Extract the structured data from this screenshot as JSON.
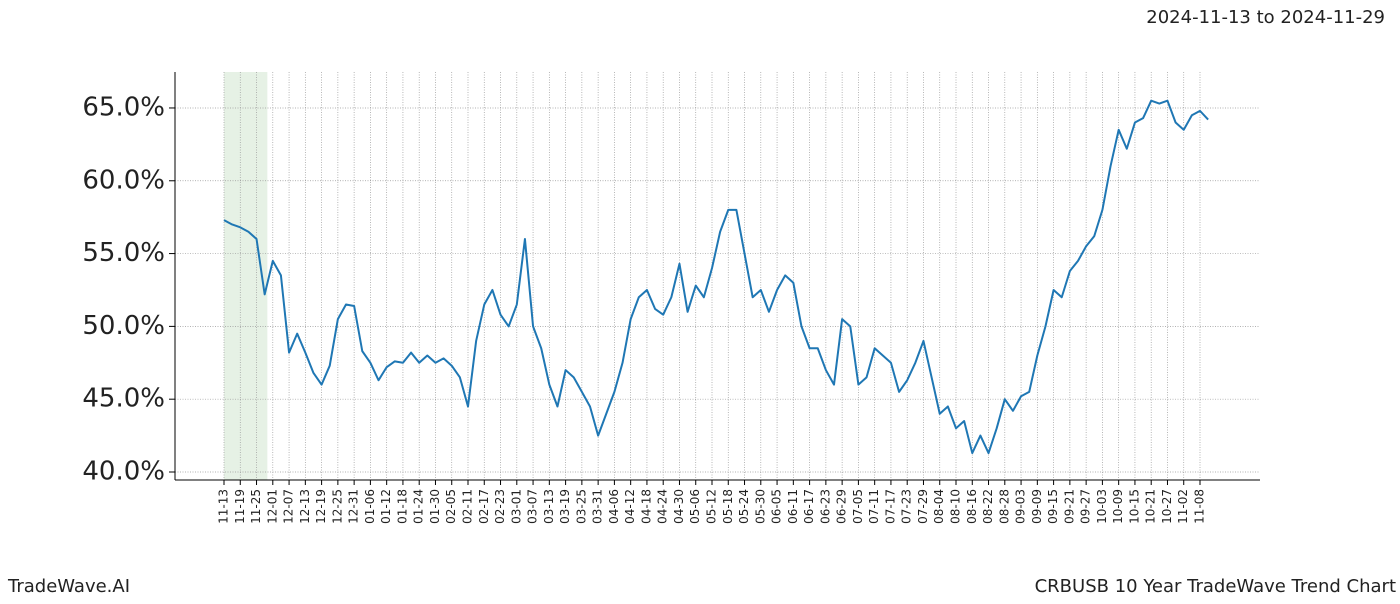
{
  "header": "2024-11-13 to 2024-11-29",
  "footer_left": "TradeWave.AI",
  "footer_right": "CRBUSB 10 Year TradeWave Trend Chart",
  "chart_data": {
    "type": "line",
    "color": "#1f77b4",
    "grid": true,
    "shade": {
      "from": "11-13",
      "to": "11-29",
      "color": "#d5e8d4"
    },
    "ylim": [
      39.45,
      67.47
    ],
    "yticks": [
      {
        "value": 40,
        "label": "40.0%"
      },
      {
        "value": 45,
        "label": "45.0%"
      },
      {
        "value": 50,
        "label": "50.0%"
      },
      {
        "value": 55,
        "label": "55.0%"
      },
      {
        "value": 60,
        "label": "60.0%"
      },
      {
        "value": 65,
        "label": "65.0%"
      }
    ],
    "xticks": [
      "11-13",
      "11-19",
      "11-25",
      "12-01",
      "12-07",
      "12-13",
      "12-19",
      "12-25",
      "12-31",
      "01-06",
      "01-12",
      "01-18",
      "01-24",
      "01-30",
      "02-05",
      "02-11",
      "02-17",
      "02-23",
      "03-01",
      "03-07",
      "03-13",
      "03-19",
      "03-25",
      "03-31",
      "04-06",
      "04-12",
      "04-18",
      "04-24",
      "04-30",
      "05-06",
      "05-12",
      "05-18",
      "05-24",
      "05-30",
      "06-05",
      "06-11",
      "06-17",
      "06-23",
      "06-29",
      "07-05",
      "07-11",
      "07-17",
      "07-23",
      "07-29",
      "08-04",
      "08-10",
      "08-16",
      "08-22",
      "08-28",
      "09-03",
      "09-09",
      "09-15",
      "09-21",
      "09-27",
      "10-03",
      "10-09",
      "10-15",
      "10-21",
      "10-27",
      "11-02",
      "11-08"
    ],
    "x": [
      "11-13",
      "11-16",
      "11-19",
      "11-22",
      "11-25",
      "11-28",
      "12-01",
      "12-04",
      "12-07",
      "12-10",
      "12-13",
      "12-16",
      "12-19",
      "12-22",
      "12-25",
      "12-28",
      "12-31",
      "01-03",
      "01-06",
      "01-09",
      "01-12",
      "01-15",
      "01-18",
      "01-21",
      "01-24",
      "01-27",
      "01-30",
      "02-02",
      "02-05",
      "02-08",
      "02-11",
      "02-14",
      "02-17",
      "02-20",
      "02-23",
      "02-26",
      "03-01",
      "03-04",
      "03-07",
      "03-10",
      "03-13",
      "03-16",
      "03-19",
      "03-22",
      "03-25",
      "03-28",
      "03-31",
      "04-03",
      "04-06",
      "04-09",
      "04-12",
      "04-15",
      "04-18",
      "04-21",
      "04-24",
      "04-27",
      "04-30",
      "05-03",
      "05-06",
      "05-09",
      "05-12",
      "05-15",
      "05-18",
      "05-21",
      "05-24",
      "05-27",
      "05-30",
      "06-02",
      "06-05",
      "06-08",
      "06-11",
      "06-14",
      "06-17",
      "06-20",
      "06-23",
      "06-26",
      "06-29",
      "07-02",
      "07-05",
      "07-08",
      "07-11",
      "07-14",
      "07-17",
      "07-20",
      "07-23",
      "07-26",
      "07-29",
      "08-01",
      "08-04",
      "08-07",
      "08-10",
      "08-13",
      "08-16",
      "08-19",
      "08-22",
      "08-25",
      "08-28",
      "08-31",
      "09-03",
      "09-06",
      "09-09",
      "09-12",
      "09-15",
      "09-18",
      "09-21",
      "09-24",
      "09-27",
      "09-30",
      "10-03",
      "10-06",
      "10-09",
      "10-12",
      "10-15",
      "10-18",
      "10-21",
      "10-24",
      "10-27",
      "10-30",
      "11-02",
      "11-05",
      "11-08",
      "11-11"
    ],
    "values": [
      57.3,
      57.0,
      56.8,
      56.5,
      56.0,
      52.2,
      54.5,
      53.5,
      48.2,
      49.5,
      48.2,
      46.8,
      46.0,
      47.3,
      50.5,
      51.5,
      51.4,
      48.3,
      47.5,
      46.3,
      47.2,
      47.6,
      47.5,
      48.2,
      47.5,
      48.0,
      47.5,
      47.8,
      47.3,
      46.5,
      44.5,
      49.0,
      51.5,
      52.5,
      50.8,
      50.0,
      51.5,
      56.0,
      50.0,
      48.5,
      46.0,
      44.5,
      47.0,
      46.5,
      45.5,
      44.5,
      42.5,
      44.0,
      45.5,
      47.5,
      50.5,
      52.0,
      52.5,
      51.2,
      50.8,
      52.0,
      54.3,
      51.0,
      52.8,
      52.0,
      54.0,
      56.5,
      58.0,
      58.0,
      55.0,
      52.0,
      52.5,
      51.0,
      52.5,
      53.5,
      53.0,
      50.0,
      48.5,
      48.5,
      47.0,
      46.0,
      50.5,
      50.0,
      46.0,
      46.5,
      48.5,
      48.0,
      47.5,
      45.5,
      46.3,
      47.5,
      49.0,
      46.5,
      44.0,
      44.5,
      43.0,
      43.5,
      41.3,
      42.5,
      41.3,
      43.0,
      45.0,
      44.2,
      45.2,
      45.5,
      48.0,
      50.0,
      52.5,
      52.0,
      53.8,
      54.5,
      55.5,
      56.2,
      58.0,
      61.0,
      63.5,
      62.2,
      64.0,
      64.3,
      65.5,
      65.3,
      65.5,
      64.0,
      63.5,
      64.5,
      64.8,
      64.2
    ]
  }
}
